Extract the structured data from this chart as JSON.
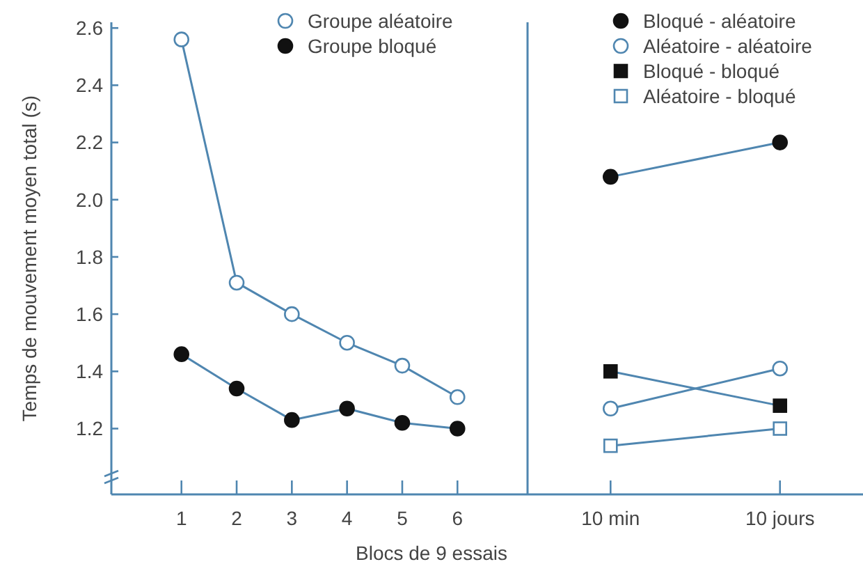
{
  "chart_data": [
    {
      "type": "line",
      "ylabel": "Temps de mouvement moyen total (s)",
      "xlabel": "Blocs de 9 essais",
      "categories": [
        "1",
        "2",
        "3",
        "4",
        "5",
        "6"
      ],
      "ylim": [
        0.97,
        2.62
      ],
      "yticks": [
        1.2,
        1.4,
        1.6,
        1.8,
        {
          "value": 2,
          "label": "2.0"
        },
        2.2,
        2.4,
        2.6
      ],
      "legend": "top",
      "marker": "circle",
      "series": [
        {
          "name": "Groupe aléatoire",
          "color": "#ffffff",
          "values": [
            2.56,
            1.71,
            1.6,
            1.5,
            1.42,
            1.31
          ]
        },
        {
          "name": "Groupe bloqué",
          "color": "#111111",
          "values": [
            1.46,
            1.34,
            1.23,
            1.27,
            1.22,
            1.2
          ]
        }
      ]
    },
    {
      "type": "line",
      "categories": [
        "10 min",
        "10 jours"
      ],
      "ylim": [
        0.97,
        2.62
      ],
      "tick_labels": "x",
      "legend": "top",
      "series": [
        {
          "name": "Bloqué - aléatoire",
          "color": "#111111",
          "marker": "circle",
          "values": [
            2.08,
            2.2
          ]
        },
        {
          "name": "Aléatoire - aléatoire",
          "color": "#ffffff",
          "marker": "circle",
          "values": [
            1.27,
            1.41
          ]
        },
        {
          "name": "Bloqué - bloqué",
          "color": "#111111",
          "marker": "square",
          "values": [
            1.4,
            1.28
          ]
        },
        {
          "name": "Aléatoire - bloqué",
          "color": "#ffffff",
          "marker": "square",
          "values": [
            1.14,
            1.2
          ]
        }
      ]
    }
  ]
}
